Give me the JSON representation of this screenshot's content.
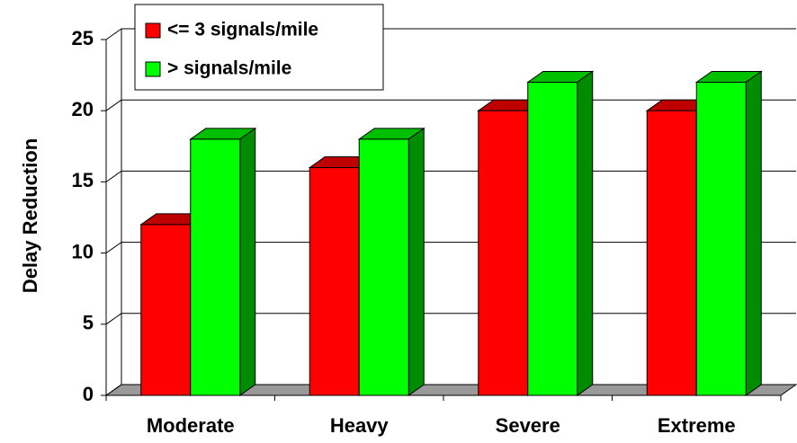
{
  "chart_data": {
    "type": "bar",
    "y_label": "Delay Reduction",
    "categories": [
      "Moderate",
      "Heavy",
      "Severe",
      "Extreme"
    ],
    "series": [
      {
        "name": "<= 3 signals/mile",
        "color": "#ff0000",
        "values": [
          12,
          16,
          20,
          20
        ]
      },
      {
        "name": "> signals/mile",
        "color": "#00ff00",
        "values": [
          18,
          18,
          22,
          22
        ]
      }
    ],
    "ylim": [
      0,
      25
    ],
    "yticks": [
      0,
      5,
      10,
      15,
      20,
      25
    ],
    "grid": true,
    "legend": "top-left"
  }
}
